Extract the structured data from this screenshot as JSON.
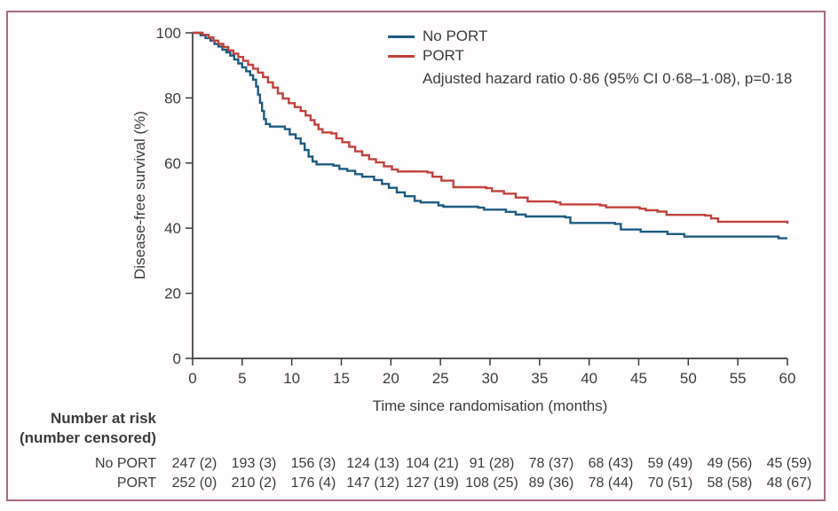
{
  "figure": {
    "border_color": "#aa6b7a",
    "axis_color": "#3c3c3c",
    "background": "#fffdfe"
  },
  "chart_data": {
    "type": "line",
    "subtype": "step-km",
    "title": "",
    "xlabel": "Time since randomisation (months)",
    "ylabel": "Disease-free survival (%)",
    "xlim": [
      0,
      60
    ],
    "ylim": [
      0,
      100
    ],
    "x_ticks": [
      0,
      5,
      10,
      15,
      20,
      25,
      30,
      35,
      40,
      45,
      50,
      55,
      60
    ],
    "y_ticks": [
      0,
      20,
      40,
      60,
      80,
      100
    ],
    "grid": false,
    "legend_position": "top-center",
    "annotation": "Adjusted hazard ratio 0·86 (95% CI 0·68–1·08), p=0·18",
    "series": [
      {
        "name": "No PORT",
        "color": "#1e5b80",
        "points": [
          [
            0,
            100
          ],
          [
            0.8,
            99.2
          ],
          [
            1.3,
            98.4
          ],
          [
            1.8,
            97.6
          ],
          [
            2.2,
            96.6
          ],
          [
            2.6,
            95.8
          ],
          [
            3,
            94.8
          ],
          [
            3.4,
            94
          ],
          [
            3.8,
            93
          ],
          [
            4.2,
            91.8
          ],
          [
            4.6,
            90.6
          ],
          [
            5,
            89.4
          ],
          [
            5.4,
            88.2
          ],
          [
            5.8,
            87
          ],
          [
            6.1,
            85.6
          ],
          [
            6.4,
            83.5
          ],
          [
            6.6,
            81
          ],
          [
            6.8,
            78.5
          ],
          [
            7,
            76
          ],
          [
            7.2,
            73.5
          ],
          [
            7.4,
            72
          ],
          [
            7.8,
            71.2
          ],
          [
            9.3,
            70.4
          ],
          [
            9.8,
            68.8
          ],
          [
            10.4,
            67.6
          ],
          [
            10.9,
            66
          ],
          [
            11.3,
            64
          ],
          [
            11.7,
            62
          ],
          [
            12.1,
            60.5
          ],
          [
            12.5,
            59.6
          ],
          [
            14.2,
            59.2
          ],
          [
            14.8,
            58.2
          ],
          [
            15.6,
            57.6
          ],
          [
            16.4,
            56.6
          ],
          [
            17.1,
            55.8
          ],
          [
            18.3,
            54.8
          ],
          [
            19.1,
            53.6
          ],
          [
            19.8,
            52.4
          ],
          [
            20.6,
            51
          ],
          [
            21.4,
            49.8
          ],
          [
            22.4,
            48.4
          ],
          [
            23,
            47.9
          ],
          [
            24.8,
            47
          ],
          [
            25.3,
            46.6
          ],
          [
            28.8,
            46.3
          ],
          [
            29.4,
            45.7
          ],
          [
            31.6,
            45
          ],
          [
            32.6,
            44.2
          ],
          [
            33.6,
            43.6
          ],
          [
            37.6,
            43.3
          ],
          [
            38.1,
            41.6
          ],
          [
            42.6,
            41.3
          ],
          [
            43.2,
            39.6
          ],
          [
            45.2,
            38.9
          ],
          [
            47.9,
            38.2
          ],
          [
            49.6,
            37.4
          ],
          [
            58.6,
            37.4
          ],
          [
            59.1,
            36.9
          ],
          [
            60,
            36.9
          ]
        ]
      },
      {
        "name": "PORT",
        "color": "#c2413c",
        "points": [
          [
            0,
            100
          ],
          [
            1,
            99.4
          ],
          [
            1.6,
            98.6
          ],
          [
            2.1,
            97.6
          ],
          [
            2.6,
            96.6
          ],
          [
            3.1,
            95.6
          ],
          [
            3.6,
            94.6
          ],
          [
            4.1,
            93.6
          ],
          [
            4.6,
            92.6
          ],
          [
            5.1,
            91.4
          ],
          [
            5.6,
            90.2
          ],
          [
            6.1,
            89
          ],
          [
            6.6,
            87.8
          ],
          [
            7.1,
            86.4
          ],
          [
            7.6,
            84.8
          ],
          [
            8.1,
            83.2
          ],
          [
            8.6,
            81.4
          ],
          [
            9.1,
            79.8
          ],
          [
            9.7,
            78.4
          ],
          [
            10.3,
            77.2
          ],
          [
            10.9,
            76
          ],
          [
            11.4,
            74.6
          ],
          [
            11.9,
            73.2
          ],
          [
            12.3,
            71.8
          ],
          [
            12.7,
            70.4
          ],
          [
            13.1,
            69.4
          ],
          [
            14,
            69.1
          ],
          [
            14.5,
            67.6
          ],
          [
            15.1,
            66.4
          ],
          [
            15.8,
            65
          ],
          [
            16.4,
            63.6
          ],
          [
            17.1,
            62.4
          ],
          [
            17.8,
            61.2
          ],
          [
            18.5,
            60.2
          ],
          [
            19.3,
            59
          ],
          [
            20.1,
            58
          ],
          [
            20.7,
            57.4
          ],
          [
            23.7,
            57.1
          ],
          [
            24.2,
            55.8
          ],
          [
            25.1,
            54.6
          ],
          [
            26.3,
            52.6
          ],
          [
            29.6,
            52.3
          ],
          [
            30.2,
            51.4
          ],
          [
            31.4,
            50.6
          ],
          [
            32.6,
            49.4
          ],
          [
            33.8,
            48.2
          ],
          [
            36.6,
            47.9
          ],
          [
            37.1,
            47.3
          ],
          [
            41.1,
            47
          ],
          [
            41.7,
            46.4
          ],
          [
            45.1,
            46
          ],
          [
            45.7,
            45.5
          ],
          [
            46.9,
            45.1
          ],
          [
            47.8,
            44.1
          ],
          [
            51.7,
            43.9
          ],
          [
            52.3,
            43
          ],
          [
            53,
            42
          ],
          [
            60,
            41.4
          ]
        ]
      }
    ]
  },
  "risk_table": {
    "header_line1": "Number at risk",
    "header_line2": "(number censored)",
    "time_points": [
      0,
      6,
      12,
      18,
      24,
      30,
      36,
      42,
      48,
      54,
      60
    ],
    "rows": [
      {
        "label": "No PORT",
        "values": [
          "247 (2)",
          "193 (3)",
          "156 (3)",
          "124 (13)",
          "104 (21)",
          "91 (28)",
          "78 (37)",
          "68 (43)",
          "59 (49)",
          "49 (56)",
          "45 (59)"
        ]
      },
      {
        "label": "PORT",
        "values": [
          "252 (0)",
          "210 (2)",
          "176 (4)",
          "147 (12)",
          "127 (19)",
          "108 (25)",
          "89 (36)",
          "78 (44)",
          "70 (51)",
          "58 (58)",
          "48 (67)"
        ]
      }
    ]
  }
}
